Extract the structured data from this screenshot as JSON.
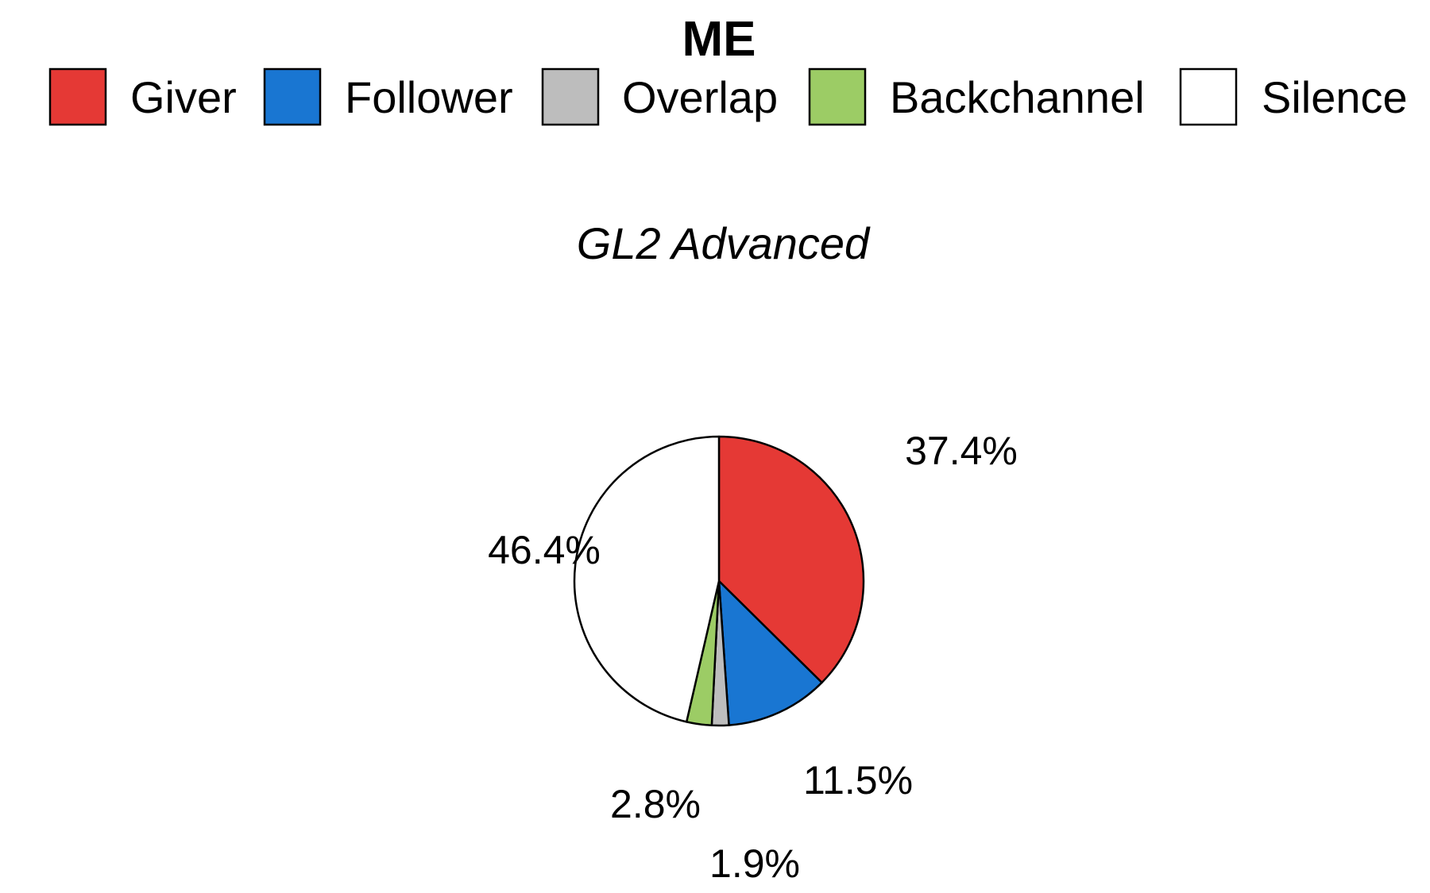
{
  "chart_data": {
    "type": "pie",
    "legend_title": "ME",
    "title": "GL2 Advanced",
    "legend_position": "top",
    "slices": [
      {
        "name": "Giver",
        "value": 37.4,
        "label": "37.4%",
        "color": "#e53935"
      },
      {
        "name": "Follower",
        "value": 11.5,
        "label": "11.5%",
        "color": "#1976d2"
      },
      {
        "name": "Overlap",
        "value": 1.9,
        "label": "1.9%",
        "color": "#bdbdbd"
      },
      {
        "name": "Backchannel",
        "value": 2.8,
        "label": "2.8%",
        "color": "#9ccc65"
      },
      {
        "name": "Silence",
        "value": 46.4,
        "label": "46.4%",
        "color": "#ffffff"
      }
    ]
  }
}
